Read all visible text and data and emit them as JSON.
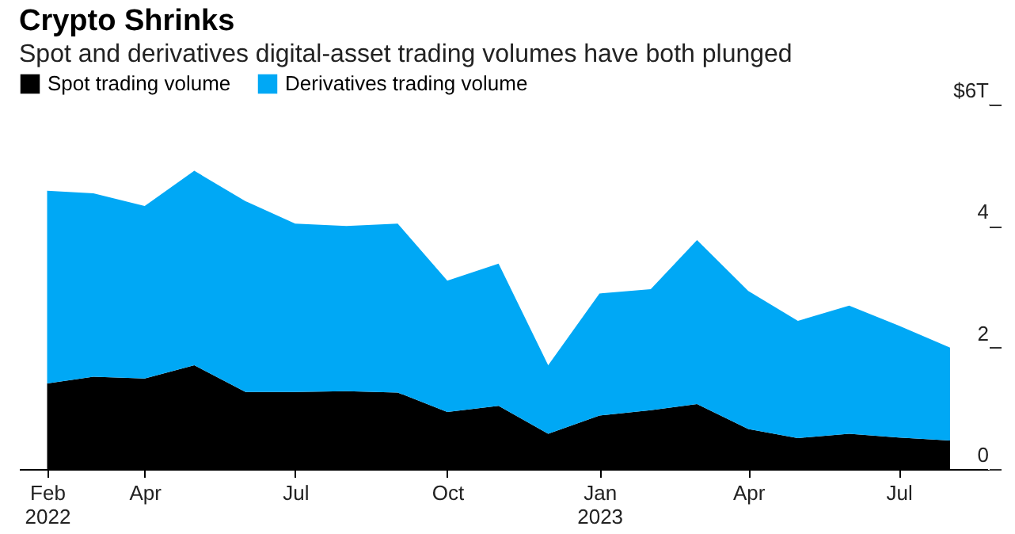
{
  "chart_data": {
    "type": "area",
    "title": "Crypto Shrinks",
    "subtitle": "Spot and derivatives digital-asset trading volumes have both plunged",
    "x": [
      "2022-02",
      "2022-03",
      "2022-04",
      "2022-05",
      "2022-06",
      "2022-07",
      "2022-08",
      "2022-09",
      "2022-10",
      "2022-11",
      "2022-12",
      "2023-01",
      "2023-02",
      "2023-03",
      "2023-04",
      "2023-05",
      "2023-06",
      "2023-07",
      "2023-08"
    ],
    "stacked": true,
    "series": [
      {
        "name": "Spot trading volume",
        "color": "#000000",
        "values": [
          1.41,
          1.52,
          1.49,
          1.71,
          1.27,
          1.27,
          1.28,
          1.26,
          0.94,
          1.04,
          0.58,
          0.88,
          0.97,
          1.07,
          0.66,
          0.51,
          0.58,
          0.52,
          0.47
        ]
      },
      {
        "name": "Derivatives trading volume",
        "color": "#00a8f5",
        "values": [
          3.17,
          3.02,
          2.84,
          3.2,
          3.14,
          2.77,
          2.72,
          2.78,
          2.16,
          2.34,
          1.13,
          2.01,
          1.99,
          2.7,
          2.27,
          1.93,
          2.11,
          1.84,
          1.53
        ]
      }
    ],
    "xlim": [
      "2022-01-15",
      "2023-08-24"
    ],
    "xticks": [
      {
        "value": "2022-02",
        "label": "Feb 2022"
      },
      {
        "value": "2022-04",
        "label": "Apr"
      },
      {
        "value": "2022-07",
        "label": "Jul"
      },
      {
        "value": "2022-10",
        "label": "Oct"
      },
      {
        "value": "2023-01",
        "label": "Jan 2023"
      },
      {
        "value": "2023-04",
        "label": "Apr"
      },
      {
        "value": "2023-07",
        "label": "Jul"
      }
    ],
    "ylim": [
      0,
      6
    ],
    "yticks": [
      0,
      2,
      4,
      {
        "value": 6,
        "label": "$6T"
      }
    ],
    "grid": false,
    "legend": "top left"
  }
}
